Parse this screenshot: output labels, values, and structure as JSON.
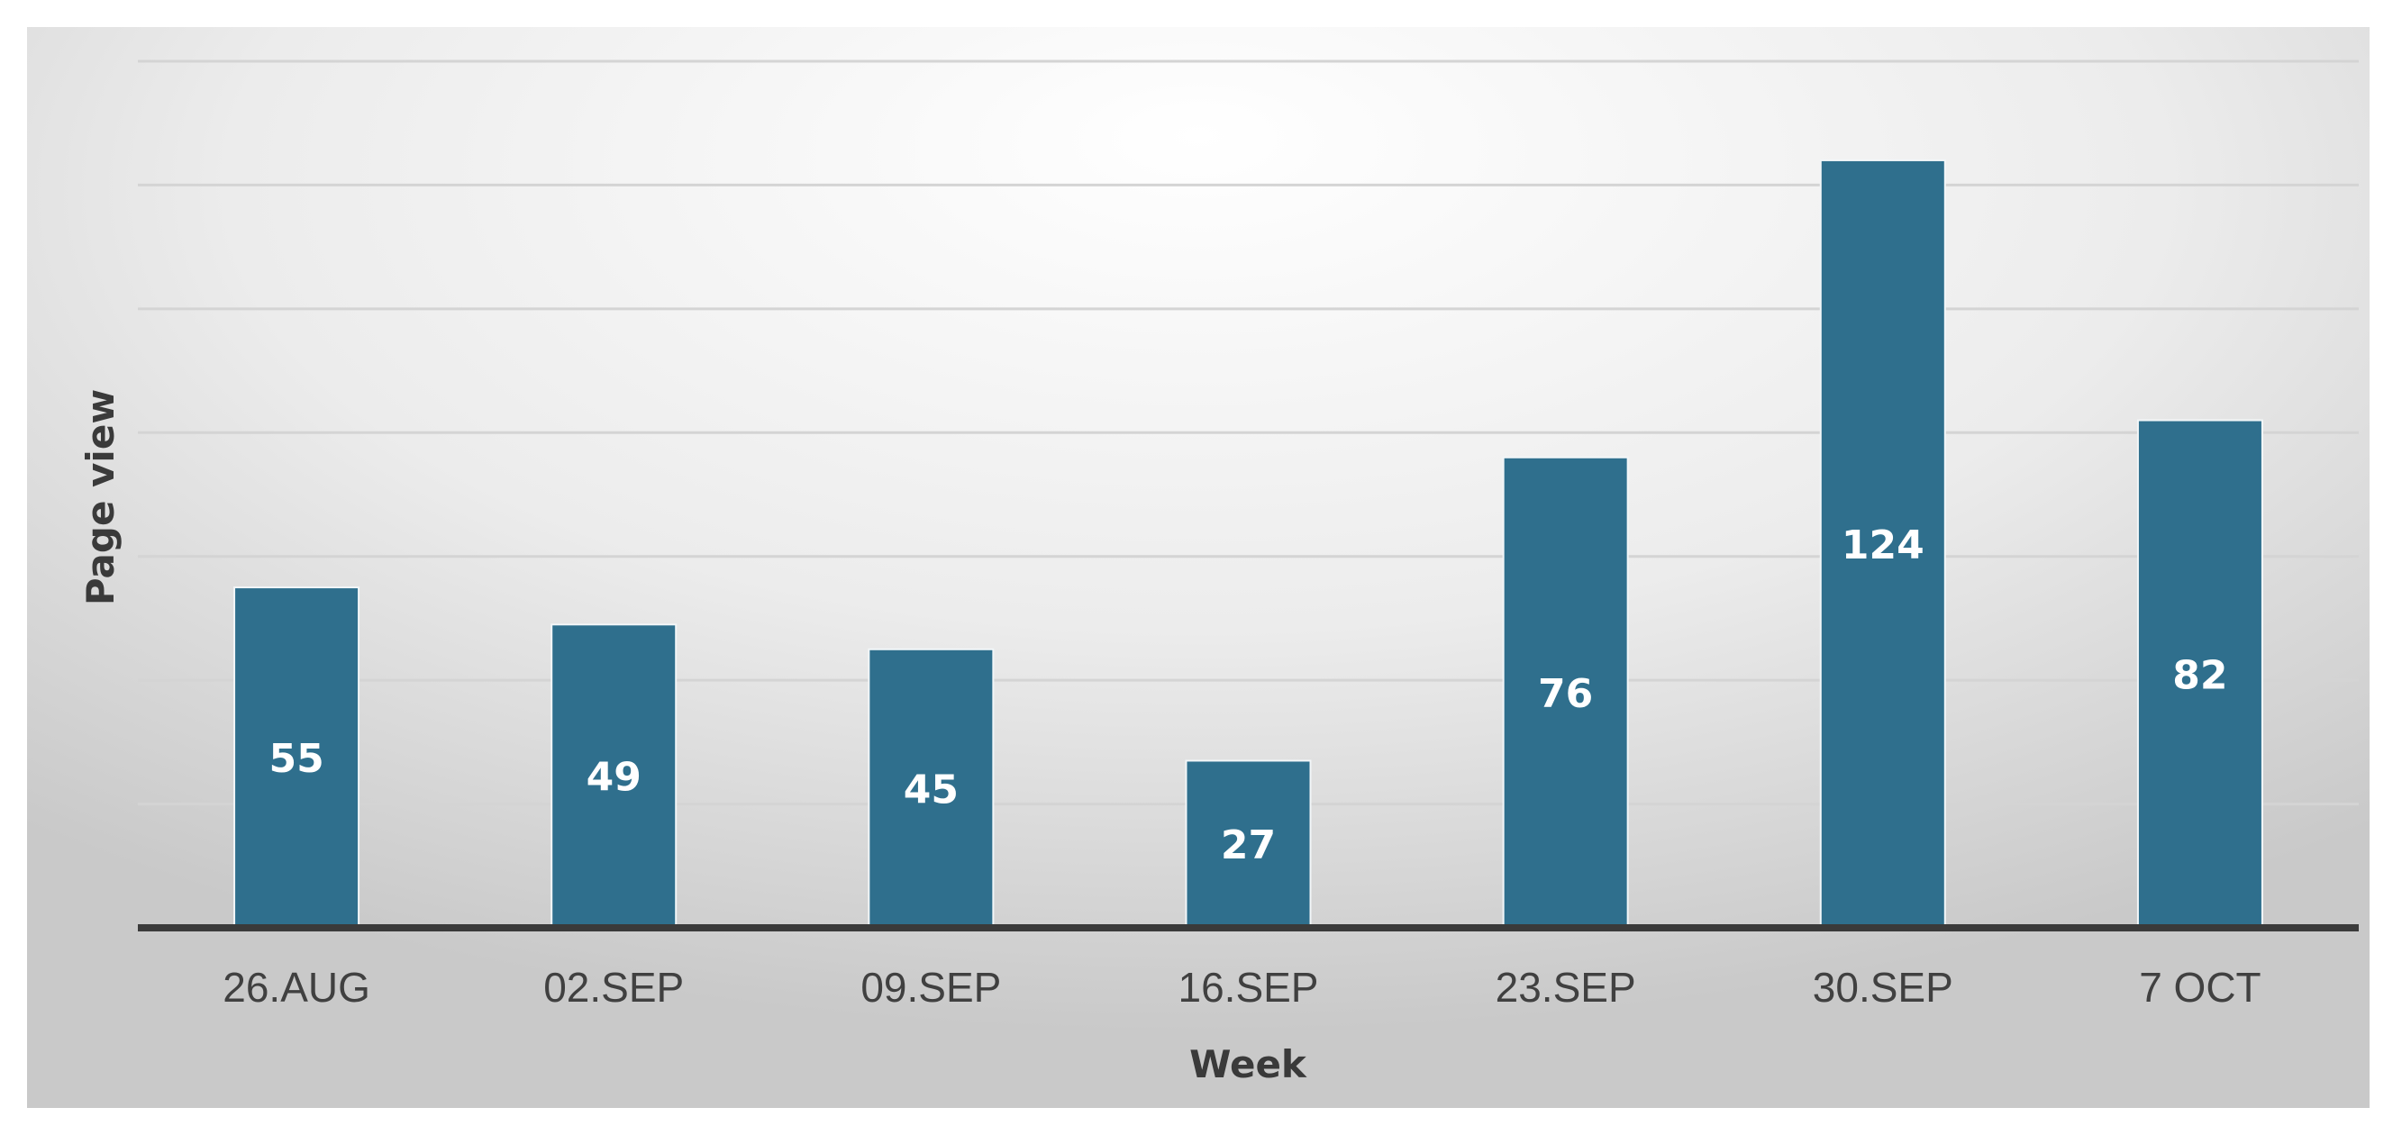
{
  "chart_data": {
    "type": "bar",
    "categories": [
      "26.AUG",
      "02.SEP",
      "09.SEP",
      "16.SEP",
      "23.SEP",
      "30.SEP",
      "7 OCT"
    ],
    "series": [
      {
        "values": [
          55,
          49,
          45,
          27,
          76,
          124,
          82
        ]
      }
    ],
    "xlabel": "Week",
    "ylabel": "Page view",
    "ylim": [
      0,
      140
    ],
    "grid": true,
    "legend": "none",
    "bar_color": "#2f6f8d",
    "data_labels": [
      "55",
      "49",
      "45",
      "27",
      "76",
      "124",
      "82"
    ]
  }
}
